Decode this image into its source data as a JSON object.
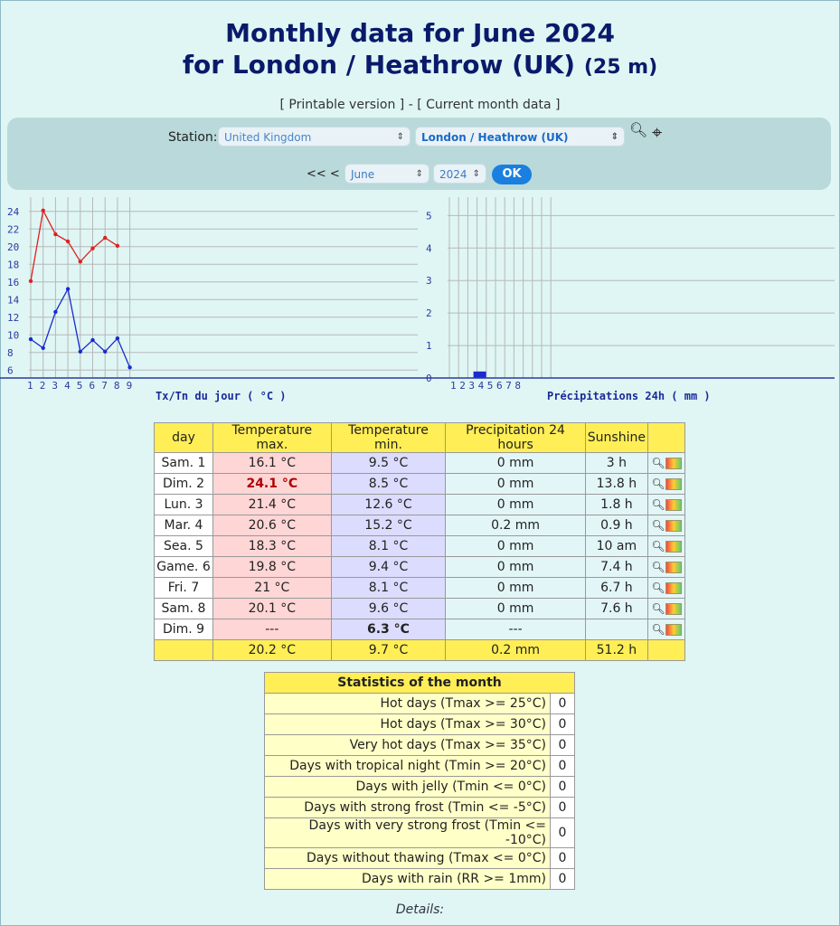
{
  "title_line1": "Monthly data for June 2024",
  "title_line2": "for London / Heathrow (UK)",
  "altitude": "(25 m)",
  "links": {
    "printable": "[ Printable version ]",
    "sep": " - ",
    "current": "[ Current month data ]"
  },
  "form": {
    "station_label": "Station:",
    "country": "United Kingdom",
    "station": "London / Heathrow (UK)",
    "prev": "<< <",
    "month": "June",
    "year": "2024",
    "ok": "OK"
  },
  "charts": {
    "temp_label": "Tx/Tn du jour ( °C )",
    "precip_label": "Précipitations 24h ( mm )"
  },
  "chart_data": [
    {
      "type": "line",
      "xlabel": "Tx/Tn du jour ( °C )",
      "x": [
        1,
        2,
        3,
        4,
        5,
        6,
        7,
        8,
        9
      ],
      "yticks": [
        6,
        8,
        10,
        12,
        14,
        16,
        18,
        20,
        22,
        24
      ],
      "ylim": [
        5,
        25
      ],
      "series": [
        {
          "values": [
            16.1,
            24.1,
            21.4,
            20.6,
            18.3,
            19.8,
            21,
            20.1,
            null
          ],
          "color": "#e02020"
        },
        {
          "values": [
            9.5,
            8.5,
            12.6,
            15.2,
            8.1,
            9.4,
            8.1,
            9.6,
            6.3
          ],
          "color": "#1a2ad0"
        }
      ]
    },
    {
      "type": "bar",
      "xlabel": "Précipitations 24h ( mm )",
      "categories": [
        1,
        2,
        3,
        4,
        5,
        6,
        7,
        8
      ],
      "values": [
        0,
        0,
        0,
        0.2,
        0,
        0,
        0,
        0
      ],
      "yticks": [
        0,
        1,
        2,
        3,
        4,
        5
      ],
      "ylim": [
        0,
        5.4
      ],
      "color": "#1a2ad0"
    }
  ],
  "table": {
    "headers": [
      "day",
      "Temperature max.",
      "Temperature min.",
      "Precipitation 24 hours",
      "Sunshine"
    ],
    "rows": [
      [
        "Sam. 1",
        "16.1 °C",
        "9.5 °C",
        "0 mm",
        "3 h"
      ],
      [
        "Dim. 2",
        "24.1 °C",
        "8.5 °C",
        "0 mm",
        "13.8 h"
      ],
      [
        "Lun. 3",
        "21.4 °C",
        "12.6 °C",
        "0 mm",
        "1.8 h"
      ],
      [
        "Mar. 4",
        "20.6 °C",
        "15.2 °C",
        "0.2 mm",
        "0.9 h"
      ],
      [
        "Sea. 5",
        "18.3 °C",
        "8.1 °C",
        "0 mm",
        "10 am"
      ],
      [
        "Game. 6",
        "19.8 °C",
        "9.4 °C",
        "0 mm",
        "7.4 h"
      ],
      [
        "Fri. 7",
        "21 °C",
        "8.1 °C",
        "0 mm",
        "6.7 h"
      ],
      [
        "Sam. 8",
        "20.1 °C",
        "9.6 °C",
        "0 mm",
        "7.6 h"
      ],
      [
        "Dim. 9",
        "---",
        "6.3 °C",
        "---",
        ""
      ]
    ],
    "totals": [
      "",
      "20.2 °C",
      "9.7 °C",
      "0.2 mm",
      "51.2 h"
    ]
  },
  "stats": {
    "title": "Statistics of the month",
    "rows": [
      [
        "Hot days (Tmax >= 25°C)",
        "0"
      ],
      [
        "Hot days (Tmax >= 30°C)",
        "0"
      ],
      [
        "Very hot days (Tmax >= 35°C)",
        "0"
      ],
      [
        "Days with tropical night (Tmin >= 20°C)",
        "0"
      ],
      [
        "Days with jelly (Tmin <= 0°C)",
        "0"
      ],
      [
        "Days with strong frost (Tmin <= -5°C)",
        "0"
      ],
      [
        "Days with very strong frost (Tmin <= -10°C)",
        "0"
      ],
      [
        "Days without thawing (Tmax <= 0°C)",
        "0"
      ],
      [
        "Days with rain (RR >= 1mm)",
        "0"
      ]
    ]
  },
  "details": "Details:"
}
